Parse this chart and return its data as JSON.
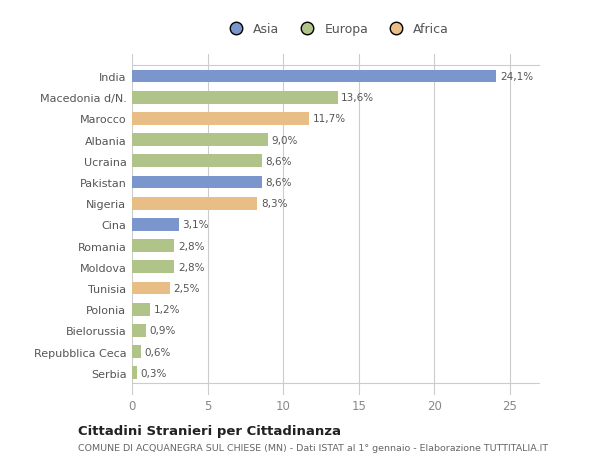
{
  "countries": [
    "India",
    "Macedonia d/N.",
    "Marocco",
    "Albania",
    "Ucraina",
    "Pakistan",
    "Nigeria",
    "Cina",
    "Romania",
    "Moldova",
    "Tunisia",
    "Polonia",
    "Bielorussia",
    "Repubblica Ceca",
    "Serbia"
  ],
  "values": [
    24.1,
    13.6,
    11.7,
    9.0,
    8.6,
    8.6,
    8.3,
    3.1,
    2.8,
    2.8,
    2.5,
    1.2,
    0.9,
    0.6,
    0.3
  ],
  "labels": [
    "24,1%",
    "13,6%",
    "11,7%",
    "9,0%",
    "8,6%",
    "8,6%",
    "8,3%",
    "3,1%",
    "2,8%",
    "2,8%",
    "2,5%",
    "1,2%",
    "0,9%",
    "0,6%",
    "0,3%"
  ],
  "continents": [
    "Asia",
    "Europa",
    "Africa",
    "Europa",
    "Europa",
    "Asia",
    "Africa",
    "Asia",
    "Europa",
    "Europa",
    "Africa",
    "Europa",
    "Europa",
    "Europa",
    "Europa"
  ],
  "colors": {
    "Asia": "#7b96cc",
    "Europa": "#b0c48a",
    "Africa": "#e8be86"
  },
  "bg_color": "#ffffff",
  "title": "Cittadini Stranieri per Cittadinanza",
  "subtitle": "COMUNE DI ACQUANEGRA SUL CHIESE (MN) - Dati ISTAT al 1° gennaio - Elaborazione TUTTITALIA.IT",
  "xlim": [
    0,
    27
  ],
  "xticks": [
    0,
    5,
    10,
    15,
    20,
    25
  ],
  "legend_labels": [
    "Asia",
    "Europa",
    "Africa"
  ],
  "legend_colors": [
    "#7b96cc",
    "#b0c48a",
    "#e8be86"
  ]
}
